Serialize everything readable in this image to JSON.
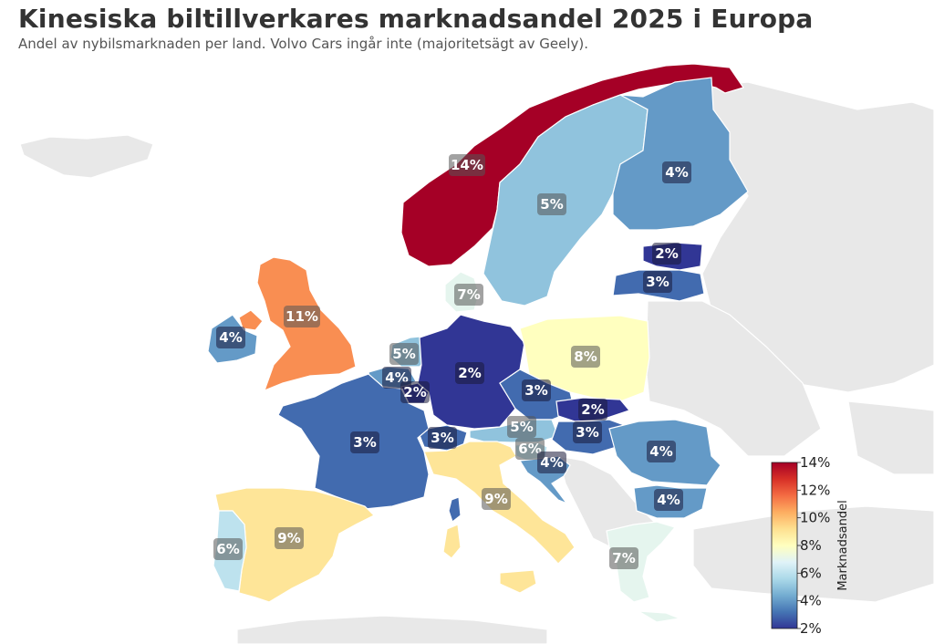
{
  "title": "Kinesiska biltillverkares marknadsandel 2025 i Europa",
  "subtitle": "Andel av nybilsmarknaden per land. Volvo Cars ingår inte (majoritetsägt av Geely).",
  "colorbar": {
    "label": "Marknadsandel",
    "min": 2,
    "max": 14,
    "ticks": [
      "2%",
      "4%",
      "6%",
      "8%",
      "10%",
      "12%",
      "14%"
    ],
    "stops": [
      "#313695",
      "#4575b4",
      "#74add1",
      "#abd9e9",
      "#e0f3f8",
      "#ffffbf",
      "#fee090",
      "#fdae61",
      "#f46d43",
      "#d73027",
      "#a50026"
    ]
  },
  "chart_data": {
    "type": "choropleth",
    "value_unit": "%",
    "regions": [
      {
        "country": "Norway",
        "value": 14,
        "label": "14%"
      },
      {
        "country": "Sweden",
        "value": 5,
        "label": "5%"
      },
      {
        "country": "Finland",
        "value": 4,
        "label": "4%"
      },
      {
        "country": "Estonia",
        "value": 2,
        "label": "2%"
      },
      {
        "country": "Latvia",
        "value": 3,
        "label": "3%"
      },
      {
        "country": "Denmark",
        "value": 7,
        "label": "7%"
      },
      {
        "country": "United Kingdom",
        "value": 11,
        "label": "11%"
      },
      {
        "country": "Ireland",
        "value": 4,
        "label": "4%"
      },
      {
        "country": "Netherlands",
        "value": 5,
        "label": "5%"
      },
      {
        "country": "Belgium",
        "value": 4,
        "label": "4%"
      },
      {
        "country": "Luxembourg",
        "value": 2,
        "label": "2%"
      },
      {
        "country": "Germany",
        "value": 2,
        "label": "2%"
      },
      {
        "country": "Poland",
        "value": 8,
        "label": "8%"
      },
      {
        "country": "Czechia",
        "value": 3,
        "label": "3%"
      },
      {
        "country": "Slovakia",
        "value": 2,
        "label": "2%"
      },
      {
        "country": "Austria",
        "value": 5,
        "label": "5%"
      },
      {
        "country": "Hungary",
        "value": 3,
        "label": "3%"
      },
      {
        "country": "Switzerland",
        "value": 3,
        "label": "3%"
      },
      {
        "country": "France",
        "value": 3,
        "label": "3%"
      },
      {
        "country": "Slovenia",
        "value": 6,
        "label": "6%"
      },
      {
        "country": "Croatia",
        "value": 4,
        "label": "4%"
      },
      {
        "country": "Romania",
        "value": 4,
        "label": "4%"
      },
      {
        "country": "Bulgaria",
        "value": 4,
        "label": "4%"
      },
      {
        "country": "Italy",
        "value": 9,
        "label": "9%"
      },
      {
        "country": "Spain",
        "value": 9,
        "label": "9%"
      },
      {
        "country": "Portugal",
        "value": 6,
        "label": "6%"
      },
      {
        "country": "Greece",
        "value": 7,
        "label": "7%"
      }
    ]
  }
}
